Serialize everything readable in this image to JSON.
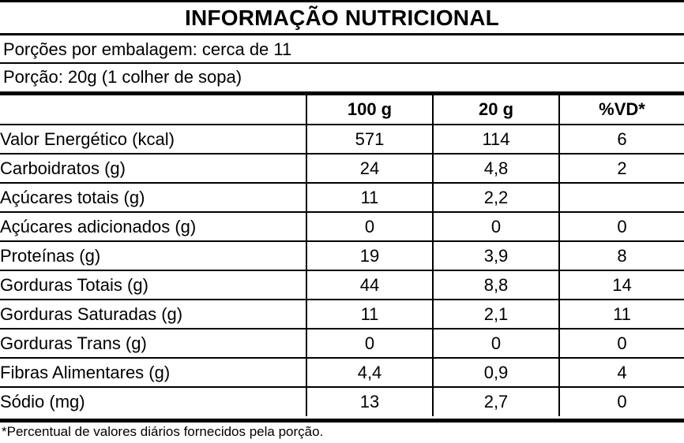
{
  "title": "INFORMAÇÃO NUTRICIONAL",
  "servings_per_package": "Porções por embalagem: cerca de 11",
  "serving_size": "Porção: 20g (1 colher de sopa)",
  "table": {
    "headers": [
      "",
      "100 g",
      "20 g",
      "%VD*"
    ],
    "rows": [
      {
        "level": 0,
        "name": "Valor Energético (kcal)",
        "per100": "571",
        "perPortion": "114",
        "dv": "6"
      },
      {
        "level": 0,
        "name": "Carboidratos (g)",
        "per100": "24",
        "perPortion": "4,8",
        "dv": "2"
      },
      {
        "level": 1,
        "name": "Açúcares totais (g)",
        "per100": "11",
        "perPortion": "2,2",
        "dv": ""
      },
      {
        "level": 2,
        "name": "Açúcares adicionados (g)",
        "per100": "0",
        "perPortion": "0",
        "dv": "0"
      },
      {
        "level": 0,
        "name": "Proteínas (g)",
        "per100": "19",
        "perPortion": "3,9",
        "dv": "8"
      },
      {
        "level": 0,
        "name": "Gorduras Totais (g)",
        "per100": "44",
        "perPortion": "8,8",
        "dv": "14"
      },
      {
        "level": 1,
        "name": "Gorduras Saturadas (g)",
        "per100": "11",
        "perPortion": "2,1",
        "dv": "11"
      },
      {
        "level": 1,
        "name": "Gorduras Trans (g)",
        "per100": "0",
        "perPortion": "0",
        "dv": "0"
      },
      {
        "level": 0,
        "name": "Fibras Alimentares (g)",
        "per100": "4,4",
        "perPortion": "0,9",
        "dv": "4"
      },
      {
        "level": 0,
        "name": "Sódio (mg)",
        "per100": "13",
        "perPortion": "2,7",
        "dv": "0"
      }
    ]
  },
  "footnote": "*Percentual de valores diários fornecidos pela porção."
}
